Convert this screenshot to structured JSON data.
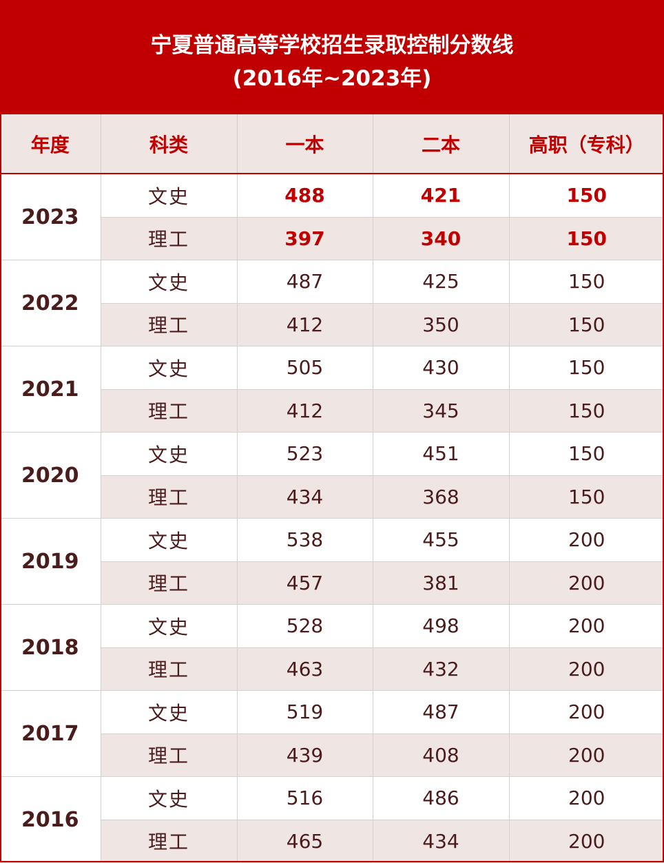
{
  "title": {
    "line1": "宁夏普通高等学校招生录取控制分数线",
    "line2": "(2016年~2023年)"
  },
  "colors": {
    "accent": "#c00000",
    "header_bg": "#efe5e2",
    "text": "#4a1c1c"
  },
  "columns": [
    "年度",
    "科类",
    "一本",
    "二本",
    "高职（专科）"
  ],
  "rows": [
    {
      "year": "2023",
      "entries": [
        {
          "category": "文史",
          "tier1": "488",
          "tier2": "421",
          "vocational": "150"
        },
        {
          "category": "理工",
          "tier1": "397",
          "tier2": "340",
          "vocational": "150"
        }
      ]
    },
    {
      "year": "2022",
      "entries": [
        {
          "category": "文史",
          "tier1": "487",
          "tier2": "425",
          "vocational": "150"
        },
        {
          "category": "理工",
          "tier1": "412",
          "tier2": "350",
          "vocational": "150"
        }
      ]
    },
    {
      "year": "2021",
      "entries": [
        {
          "category": "文史",
          "tier1": "505",
          "tier2": "430",
          "vocational": "150"
        },
        {
          "category": "理工",
          "tier1": "412",
          "tier2": "345",
          "vocational": "150"
        }
      ]
    },
    {
      "year": "2020",
      "entries": [
        {
          "category": "文史",
          "tier1": "523",
          "tier2": "451",
          "vocational": "150"
        },
        {
          "category": "理工",
          "tier1": "434",
          "tier2": "368",
          "vocational": "150"
        }
      ]
    },
    {
      "year": "2019",
      "entries": [
        {
          "category": "文史",
          "tier1": "538",
          "tier2": "455",
          "vocational": "200"
        },
        {
          "category": "理工",
          "tier1": "457",
          "tier2": "381",
          "vocational": "200"
        }
      ]
    },
    {
      "year": "2018",
      "entries": [
        {
          "category": "文史",
          "tier1": "528",
          "tier2": "498",
          "vocational": "200"
        },
        {
          "category": "理工",
          "tier1": "463",
          "tier2": "432",
          "vocational": "200"
        }
      ]
    },
    {
      "year": "2017",
      "entries": [
        {
          "category": "文史",
          "tier1": "519",
          "tier2": "487",
          "vocational": "200"
        },
        {
          "category": "理工",
          "tier1": "439",
          "tier2": "408",
          "vocational": "200"
        }
      ]
    },
    {
      "year": "2016",
      "entries": [
        {
          "category": "文史",
          "tier1": "516",
          "tier2": "486",
          "vocational": "200"
        },
        {
          "category": "理工",
          "tier1": "465",
          "tier2": "434",
          "vocational": "200"
        }
      ]
    }
  ]
}
